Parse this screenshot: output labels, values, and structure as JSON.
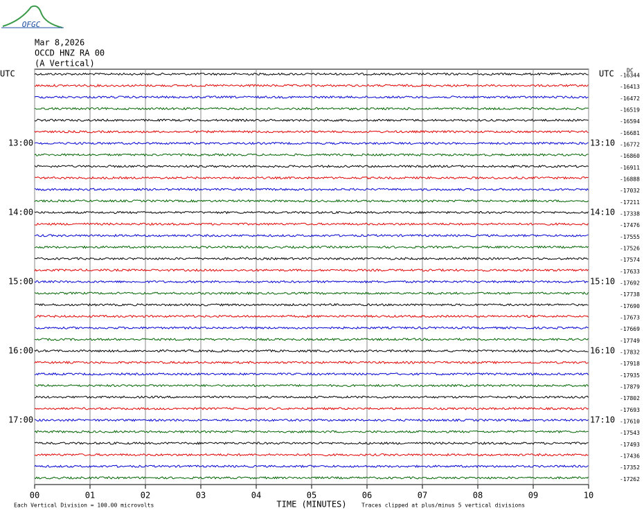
{
  "chart_data": {
    "type": "seismogram",
    "logo": "OFGC",
    "title_lines": [
      "Mar 8,2026",
      "OCCD HNZ RA 00",
      "(A Vertical)"
    ],
    "left_labels": [
      "UTC",
      "13:00",
      "14:00",
      "15:00",
      "16:00",
      "17:00"
    ],
    "right_labels": [
      "UTC",
      "13:10",
      "14:10",
      "15:10",
      "16:10",
      "17:10"
    ],
    "dc_label": "DC",
    "dc_values": [
      -16344,
      -16413,
      -16472,
      -16519,
      -16594,
      -16681,
      -16772,
      -16860,
      -16911,
      -16888,
      -17032,
      -17211,
      -17338,
      -17476,
      -17555,
      -17526,
      -17574,
      -17633,
      -17692,
      -17738,
      -17690,
      -17673,
      -17669,
      -17749,
      -17832,
      -17918,
      -17935,
      -17879,
      -17802,
      -17693,
      -17610,
      -17543,
      -17493,
      -17436,
      -17352,
      -17262
    ],
    "colors": [
      "#000000",
      "#e00000",
      "#0000d0",
      "#006400"
    ],
    "xlim": [
      0,
      10
    ],
    "xticks": [
      {
        "value": 0,
        "label": "00"
      },
      {
        "value": 1,
        "label": "01"
      },
      {
        "value": 2,
        "label": "02"
      },
      {
        "value": 3,
        "label": "03"
      },
      {
        "value": 4,
        "label": "04"
      },
      {
        "value": 5,
        "label": "05"
      },
      {
        "value": 6,
        "label": "06"
      },
      {
        "value": 7,
        "label": "07"
      },
      {
        "value": 8,
        "label": "08"
      },
      {
        "value": 9,
        "label": "09"
      },
      10
    ],
    "xlabel": "TIME (MINUTES)",
    "footer_left": "Each Vertical Division =  100.00 microvolts",
    "footer_right": "Traces clipped at plus/minus 5 vertical divisions",
    "grid": true
  }
}
